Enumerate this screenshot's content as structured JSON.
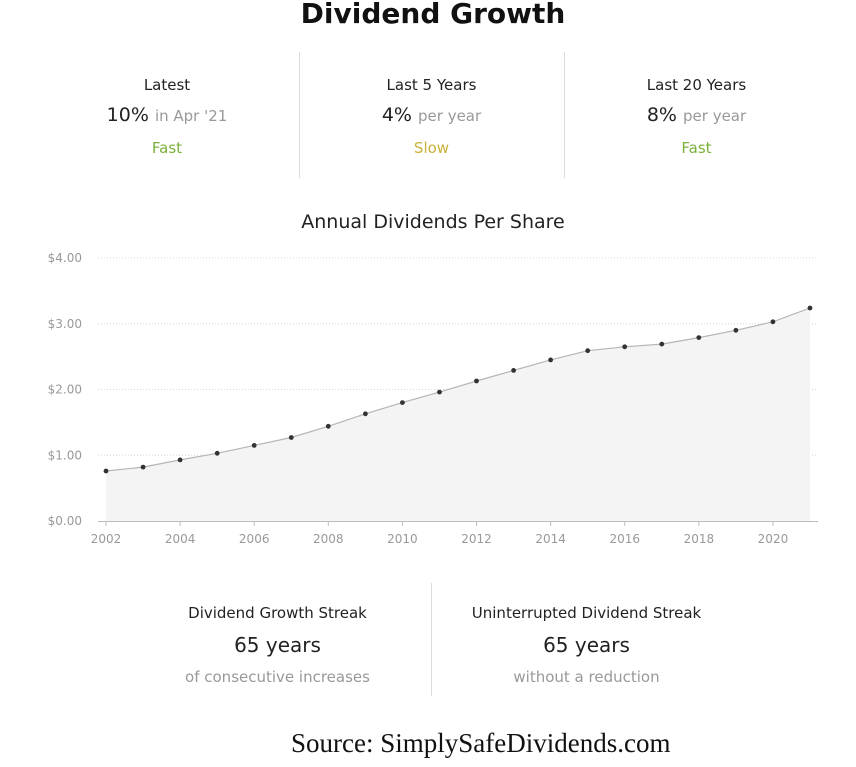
{
  "header": {
    "title": "Dividend Growth"
  },
  "stats": [
    {
      "label": "Latest",
      "value": "10%",
      "sub": "in Apr '21",
      "rating": "Fast",
      "rating_color": "#7ab13a"
    },
    {
      "label": "Last 5 Years",
      "value": "4%",
      "sub": "per year",
      "rating": "Slow",
      "rating_color": "#c9b23a"
    },
    {
      "label": "Last 20 Years",
      "value": "8%",
      "sub": "per year",
      "rating": "Fast",
      "rating_color": "#7ab13a"
    }
  ],
  "chart_data": {
    "type": "area",
    "title": "Annual Dividends Per Share",
    "xlabel": "",
    "ylabel": "",
    "x": [
      2002,
      2003,
      2004,
      2005,
      2006,
      2007,
      2008,
      2009,
      2010,
      2011,
      2012,
      2013,
      2014,
      2015,
      2016,
      2017,
      2018,
      2019,
      2020,
      2021
    ],
    "values": [
      0.76,
      0.82,
      0.93,
      1.03,
      1.15,
      1.27,
      1.44,
      1.63,
      1.8,
      1.96,
      2.13,
      2.29,
      2.45,
      2.59,
      2.65,
      2.69,
      2.79,
      2.9,
      3.03,
      3.24
    ],
    "xticks": [
      "2002",
      "2004",
      "2006",
      "2008",
      "2010",
      "2012",
      "2014",
      "2016",
      "2018",
      "2020"
    ],
    "yticks": [
      "$0.00",
      "$1.00",
      "$2.00",
      "$3.00",
      "$4.00"
    ],
    "ylim": [
      0,
      4
    ],
    "xlim": [
      2002,
      2021
    ],
    "grid": true,
    "fill_color": "#f4f4f4",
    "line_color": "#b5b5b5",
    "point_color": "#333333"
  },
  "streaks": [
    {
      "label": "Dividend Growth Streak",
      "value": "65 years",
      "sub": "of consecutive increases"
    },
    {
      "label": "Uninterrupted Dividend Streak",
      "value": "65 years",
      "sub": "without a reduction"
    }
  ],
  "footer": {
    "source": "Source: SimplySafeDividends.com"
  }
}
